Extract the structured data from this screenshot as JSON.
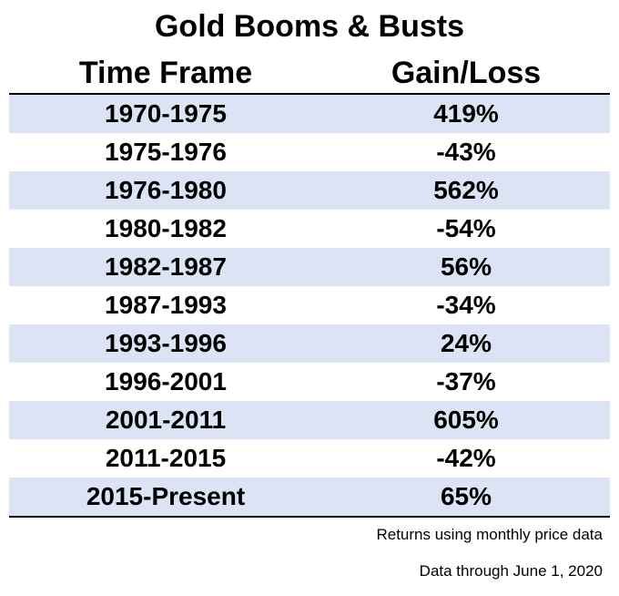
{
  "title": "Gold Booms & Busts",
  "chart_data": {
    "type": "table",
    "title": "Gold Booms & Busts",
    "columns": [
      "Time Frame",
      "Gain/Loss"
    ],
    "rows": [
      {
        "period": "1970-1975",
        "change": "419%"
      },
      {
        "period": "1975-1976",
        "change": "-43%"
      },
      {
        "period": "1976-1980",
        "change": "562%"
      },
      {
        "period": "1980-1982",
        "change": "-54%"
      },
      {
        "period": "1982-1987",
        "change": "56%"
      },
      {
        "period": "1987-1993",
        "change": "-34%"
      },
      {
        "period": "1993-1996",
        "change": "24%"
      },
      {
        "period": "1996-2001",
        "change": "-37%"
      },
      {
        "period": "2001-2011",
        "change": "605%"
      },
      {
        "period": "2011-2015",
        "change": "-42%"
      },
      {
        "period": "2015-Present",
        "change": "65%"
      }
    ],
    "values": [
      419,
      -43,
      562,
      -54,
      56,
      -34,
      24,
      -37,
      605,
      -42,
      65
    ]
  },
  "notes": {
    "source": "Returns using monthly price data",
    "date": "Data through June 1, 2020"
  },
  "colors": {
    "shaded_row": "#dce3f4",
    "rule": "#000000"
  }
}
